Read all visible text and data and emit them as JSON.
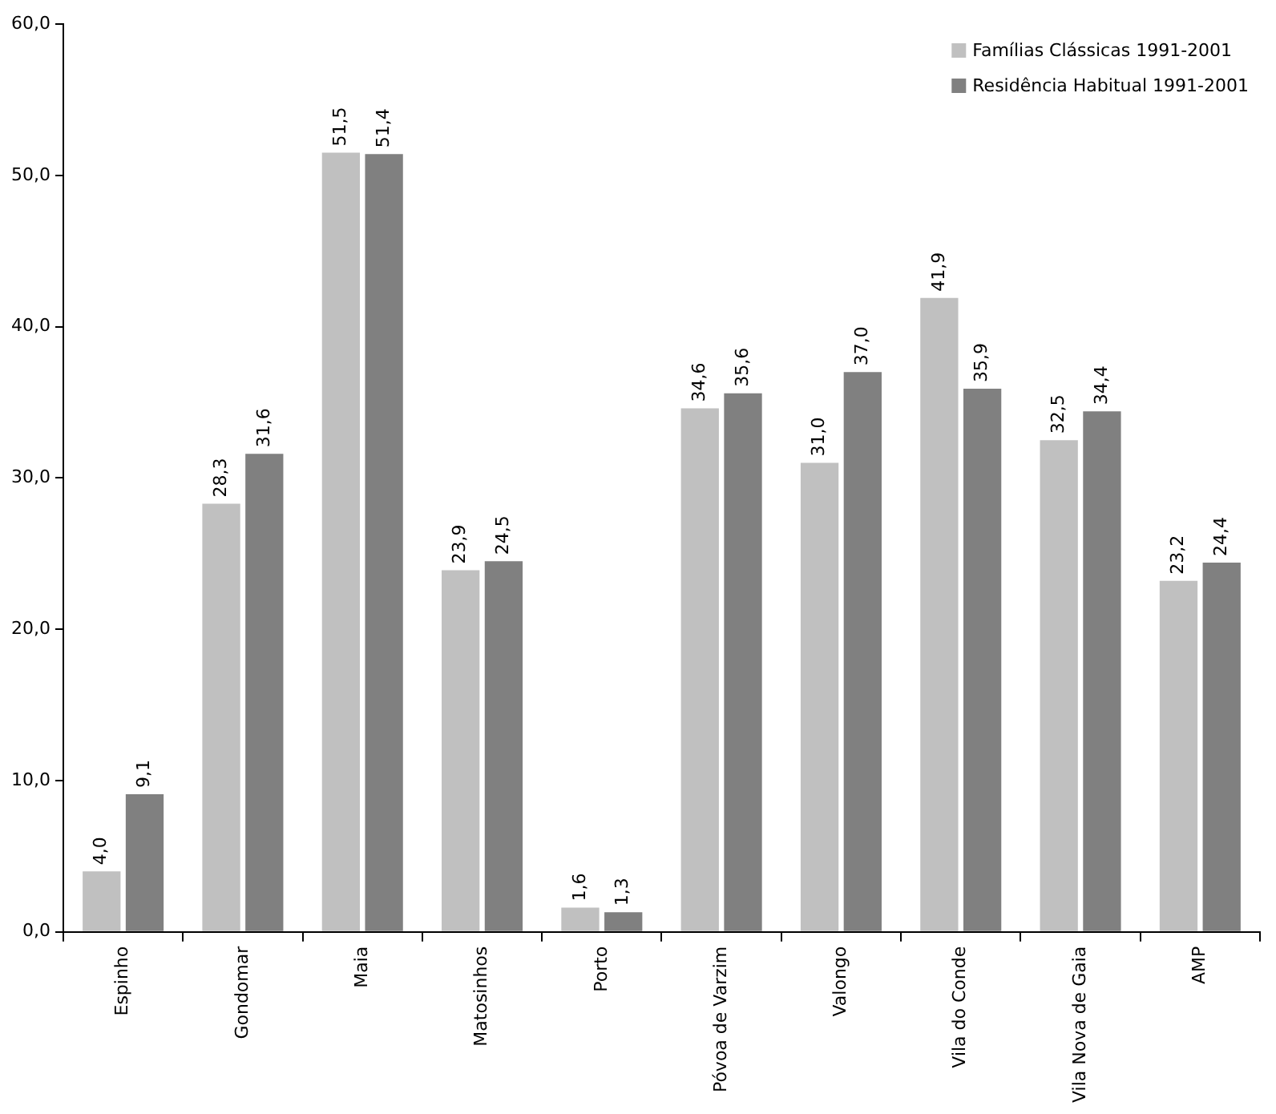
{
  "chart_data": {
    "type": "bar",
    "categories": [
      "Espinho",
      "Gondomar",
      "Maia",
      "Matosinhos",
      "Porto",
      "Póvoa de Varzim",
      "Valongo",
      "Vila do Conde",
      "Vila Nova de Gaia",
      "AMP"
    ],
    "series": [
      {
        "name": "Famílias Clássicas 1991-2001",
        "color": "#c0c0c0",
        "values": [
          4.0,
          28.3,
          51.5,
          23.9,
          1.6,
          34.6,
          31.0,
          41.9,
          32.5,
          23.2
        ],
        "value_labels": [
          "4,0",
          "28,3",
          "51,5",
          "23,9",
          "1,6",
          "34,6",
          "31,0",
          "41,9",
          "32,5",
          "23,2"
        ]
      },
      {
        "name": "Residência Habitual 1991-2001",
        "color": "#808080",
        "values": [
          9.1,
          31.6,
          51.4,
          24.5,
          1.3,
          35.6,
          37.0,
          35.9,
          34.4,
          24.4
        ],
        "value_labels": [
          "9,1",
          "31,6",
          "51,4",
          "24,5",
          "1,3",
          "35,6",
          "37,0",
          "35,9",
          "34,4",
          "24,4"
        ]
      }
    ],
    "ylim": [
      0,
      60
    ],
    "yticks": [
      {
        "value": 0,
        "label": "0,0"
      },
      {
        "value": 10,
        "label": "10,0"
      },
      {
        "value": 20,
        "label": "20,0"
      },
      {
        "value": 30,
        "label": "30,0"
      },
      {
        "value": 40,
        "label": "40,0"
      },
      {
        "value": 50,
        "label": "50,0"
      },
      {
        "value": 60,
        "label": "60,0"
      }
    ],
    "grid": false,
    "legend": "top right"
  }
}
